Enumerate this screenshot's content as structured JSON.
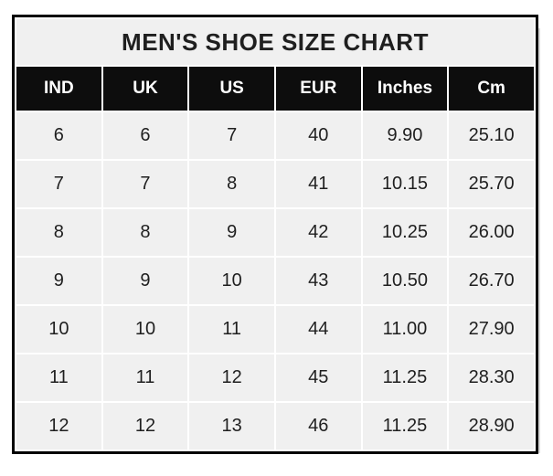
{
  "chart_data": {
    "type": "table",
    "title": "MEN'S SHOE SIZE CHART",
    "columns": [
      "IND",
      "UK",
      "US",
      "EUR",
      "Inches",
      "Cm"
    ],
    "rows": [
      [
        "6",
        "6",
        "7",
        "40",
        "9.90",
        "25.10"
      ],
      [
        "7",
        "7",
        "8",
        "41",
        "10.15",
        "25.70"
      ],
      [
        "8",
        "8",
        "9",
        "42",
        "10.25",
        "26.00"
      ],
      [
        "9",
        "9",
        "10",
        "43",
        "10.50",
        "26.70"
      ],
      [
        "10",
        "10",
        "11",
        "44",
        "11.00",
        "27.90"
      ],
      [
        "11",
        "11",
        "12",
        "45",
        "11.25",
        "28.30"
      ],
      [
        "12",
        "12",
        "13",
        "46",
        "11.25",
        "28.90"
      ]
    ]
  },
  "colors": {
    "border": "#000000",
    "gridline": "#ffffff",
    "title_bg": "#f0f0f0",
    "cell_bg": "#f0f0f0",
    "header_bg": "#0d0d0d",
    "header_text": "#ffffff",
    "text": "#1f1f1f",
    "page_bg": "#ffffff"
  }
}
